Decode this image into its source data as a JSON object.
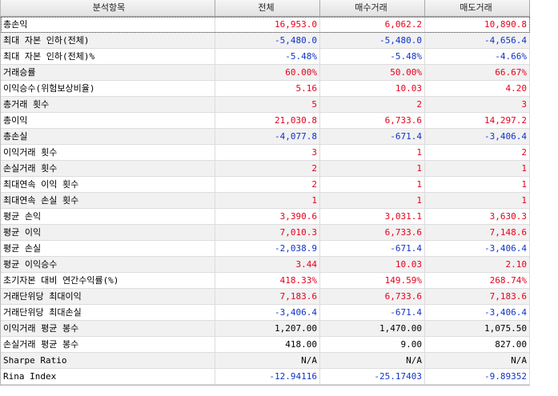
{
  "header": [
    "분석항목",
    "전체",
    "매수거래",
    "매도거래"
  ],
  "colors": {
    "positive": "#e8001c",
    "negative": "#1034c8",
    "neutral": "#000000"
  },
  "rows": [
    {
      "label": "총손익",
      "v": [
        "16,953.0",
        "6,062.2",
        "10,890.8"
      ],
      "tone": [
        "pos",
        "pos",
        "pos"
      ]
    },
    {
      "label": "최대 자본 인하(전체)",
      "v": [
        "-5,480.0",
        "-5,480.0",
        "-4,656.4"
      ],
      "tone": [
        "neg",
        "neg",
        "neg"
      ]
    },
    {
      "label": "최대 자본 인하(전체)%",
      "v": [
        "-5.48%",
        "-5.48%",
        "-4.66%"
      ],
      "tone": [
        "neg",
        "neg",
        "neg"
      ]
    },
    {
      "label": "거래승률",
      "v": [
        "60.00%",
        "50.00%",
        "66.67%"
      ],
      "tone": [
        "pos",
        "pos",
        "pos"
      ]
    },
    {
      "label": "이익승수(위험보상비율)",
      "v": [
        "5.16",
        "10.03",
        "4.20"
      ],
      "tone": [
        "pos",
        "pos",
        "pos"
      ]
    },
    {
      "label": "총거래 횟수",
      "v": [
        "5",
        "2",
        "3"
      ],
      "tone": [
        "pos",
        "pos",
        "pos"
      ]
    },
    {
      "label": "총이익",
      "v": [
        "21,030.8",
        "6,733.6",
        "14,297.2"
      ],
      "tone": [
        "pos",
        "pos",
        "pos"
      ]
    },
    {
      "label": "총손실",
      "v": [
        "-4,077.8",
        "-671.4",
        "-3,406.4"
      ],
      "tone": [
        "neg",
        "neg",
        "neg"
      ]
    },
    {
      "label": "이익거래 횟수",
      "v": [
        "3",
        "1",
        "2"
      ],
      "tone": [
        "pos",
        "pos",
        "pos"
      ]
    },
    {
      "label": "손실거래 횟수",
      "v": [
        "2",
        "1",
        "1"
      ],
      "tone": [
        "pos",
        "pos",
        "pos"
      ]
    },
    {
      "label": "최대연속 이익 횟수",
      "v": [
        "2",
        "1",
        "1"
      ],
      "tone": [
        "pos",
        "pos",
        "pos"
      ]
    },
    {
      "label": "최대연속 손실 횟수",
      "v": [
        "1",
        "1",
        "1"
      ],
      "tone": [
        "pos",
        "pos",
        "pos"
      ]
    },
    {
      "label": "평균 손익",
      "v": [
        "3,390.6",
        "3,031.1",
        "3,630.3"
      ],
      "tone": [
        "pos",
        "pos",
        "pos"
      ]
    },
    {
      "label": "평균 이익",
      "v": [
        "7,010.3",
        "6,733.6",
        "7,148.6"
      ],
      "tone": [
        "pos",
        "pos",
        "pos"
      ]
    },
    {
      "label": "평균 손실",
      "v": [
        "-2,038.9",
        "-671.4",
        "-3,406.4"
      ],
      "tone": [
        "neg",
        "neg",
        "neg"
      ]
    },
    {
      "label": "평균 이익승수",
      "v": [
        "3.44",
        "10.03",
        "2.10"
      ],
      "tone": [
        "pos",
        "pos",
        "pos"
      ]
    },
    {
      "label": "초기자본 대비 연간수익률(%)",
      "v": [
        "418.33%",
        "149.59%",
        "268.74%"
      ],
      "tone": [
        "pos",
        "pos",
        "pos"
      ]
    },
    {
      "label": "거래단위당 최대이익",
      "v": [
        "7,183.6",
        "6,733.6",
        "7,183.6"
      ],
      "tone": [
        "pos",
        "pos",
        "pos"
      ]
    },
    {
      "label": "거래단위당 최대손실",
      "v": [
        "-3,406.4",
        "-671.4",
        "-3,406.4"
      ],
      "tone": [
        "neg",
        "neg",
        "neg"
      ]
    },
    {
      "label": "이익거래 평균 봉수",
      "v": [
        "1,207.00",
        "1,470.00",
        "1,075.50"
      ],
      "tone": [
        "neu",
        "neu",
        "neu"
      ]
    },
    {
      "label": "손실거래 평균 봉수",
      "v": [
        "418.00",
        "9.00",
        "827.00"
      ],
      "tone": [
        "neu",
        "neu",
        "neu"
      ]
    },
    {
      "label": "Sharpe Ratio",
      "v": [
        "N/A",
        "N/A",
        "N/A"
      ],
      "tone": [
        "neu",
        "neu",
        "neu"
      ]
    },
    {
      "label": "Rina Index",
      "v": [
        "-12.94116",
        "-25.17403",
        "-9.89352"
      ],
      "tone": [
        "neg",
        "neg",
        "neg"
      ]
    }
  ]
}
